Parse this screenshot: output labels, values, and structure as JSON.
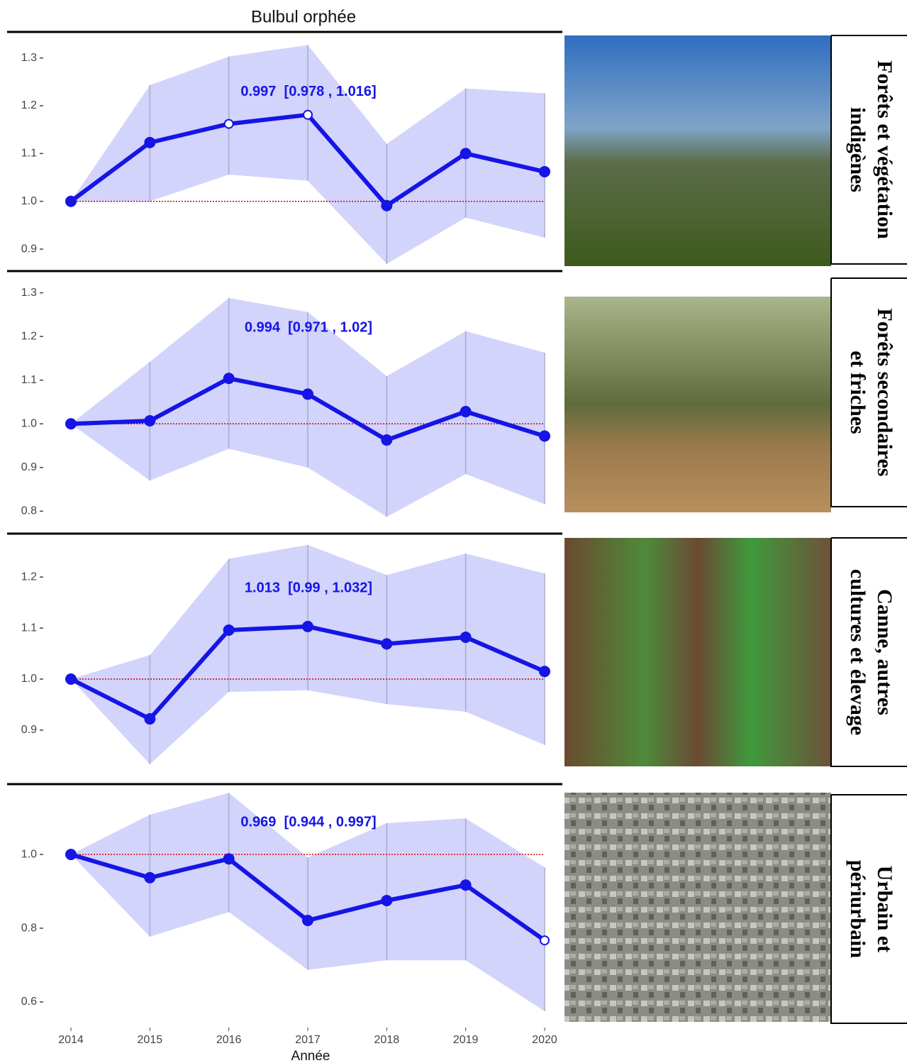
{
  "chart_data": [
    {
      "type": "line",
      "title": "Bulbul orphée",
      "x": [
        2014,
        2015,
        2016,
        2017,
        2018,
        2019,
        2020
      ],
      "values": [
        1.0,
        1.123,
        1.162,
        1.181,
        0.991,
        1.1,
        1.062
      ],
      "upper": [
        1.0,
        1.243,
        1.303,
        1.327,
        1.12,
        1.236,
        1.226
      ],
      "lower": [
        1.0,
        1.0,
        1.056,
        1.043,
        0.869,
        0.966,
        0.924
      ],
      "open_markers": [
        2,
        3
      ],
      "reference_line": 1,
      "color": "#1515e6",
      "band_color": "#d2d4fb",
      "annotation": "0.997  [0.978 , 1.016]",
      "ylim": [
        0.857,
        1.35
      ],
      "yticks": [
        {
          "value": 0.9,
          "label": "0.9"
        },
        {
          "value": 1,
          "label": "1.0"
        },
        1.1,
        1.2,
        1.3
      ],
      "panel_label": [
        "Forêts et végétation",
        "indigènes"
      ]
    },
    {
      "type": "line",
      "x": [
        2014,
        2015,
        2016,
        2017,
        2018,
        2019,
        2020
      ],
      "values": [
        1.0,
        1.007,
        1.104,
        1.068,
        0.963,
        1.028,
        0.972
      ],
      "upper": [
        1.0,
        1.142,
        1.288,
        1.256,
        1.109,
        1.212,
        1.163
      ],
      "lower": [
        1.0,
        0.87,
        0.943,
        0.9,
        0.787,
        0.885,
        0.816
      ],
      "open_markers": [],
      "reference_line": 1,
      "color": "#1515e6",
      "band_color": "#d2d4fb",
      "annotation": "0.994  [0.971 , 1.02]",
      "ylim": [
        0.76,
        1.34
      ],
      "yticks": [
        0.8,
        0.9,
        {
          "value": 1,
          "label": "1.0"
        },
        1.1,
        1.2,
        1.3
      ],
      "panel_label": [
        "Forêts secondaires",
        "et friches"
      ]
    },
    {
      "type": "line",
      "x": [
        2014,
        2015,
        2016,
        2017,
        2018,
        2019,
        2020
      ],
      "values": [
        1.0,
        0.922,
        1.096,
        1.103,
        1.069,
        1.082,
        1.015
      ],
      "upper": [
        1.0,
        1.047,
        1.236,
        1.263,
        1.204,
        1.246,
        1.207
      ],
      "lower": [
        1.0,
        0.833,
        0.975,
        0.978,
        0.951,
        0.936,
        0.871
      ],
      "open_markers": [],
      "reference_line": 1,
      "color": "#1515e6",
      "band_color": "#d2d4fb",
      "annotation": "1.013  [0.99 , 1.032]",
      "ylim": [
        0.808,
        1.274
      ],
      "yticks": [
        0.9,
        {
          "value": 1,
          "label": "1.0"
        },
        1.1,
        1.2
      ],
      "panel_label": [
        "Canne, autres",
        "cultures et élevage"
      ]
    },
    {
      "type": "line",
      "x": [
        2014,
        2015,
        2016,
        2017,
        2018,
        2019,
        2020
      ],
      "values": [
        1.0,
        0.937,
        0.988,
        0.821,
        0.875,
        0.917,
        0.767
      ],
      "upper": [
        1.0,
        1.108,
        1.167,
        0.992,
        1.085,
        1.098,
        0.965
      ],
      "lower": [
        1.0,
        0.777,
        0.844,
        0.687,
        0.713,
        0.713,
        0.575
      ],
      "open_markers": [
        6
      ],
      "reference_line": 1,
      "color": "#1515e6",
      "band_color": "#d2d4fb",
      "annotation": "0.969  [0.944 , 0.997]",
      "ylim": [
        0.546,
        1.187
      ],
      "yticks": [
        0.6,
        0.8,
        {
          "value": 1,
          "label": "1.0"
        }
      ],
      "xlabel": "Année",
      "panel_label": [
        "Urbain et",
        "périurbain"
      ]
    }
  ]
}
